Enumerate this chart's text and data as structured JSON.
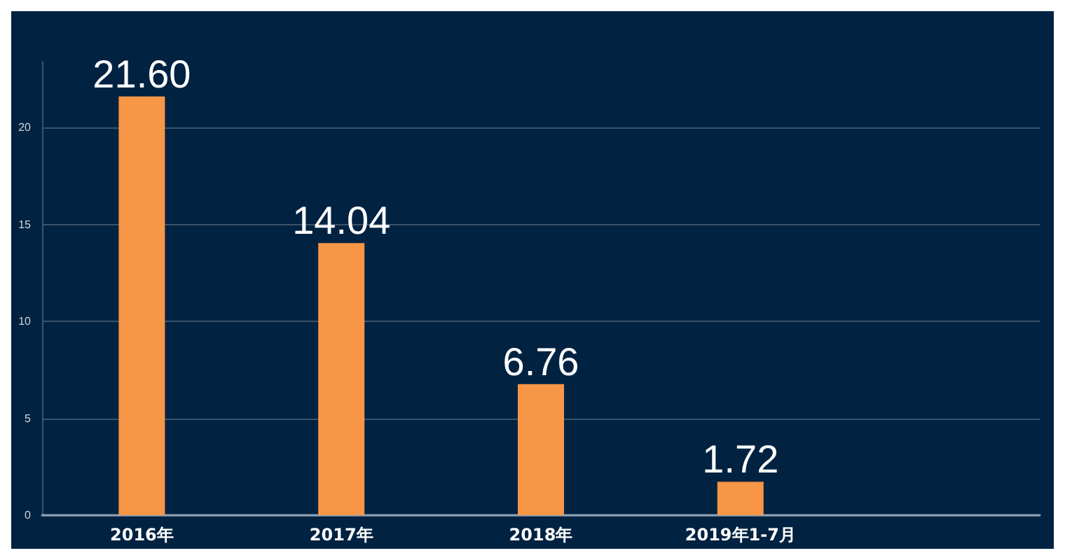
{
  "chart_data": {
    "type": "bar",
    "categories": [
      "2016年",
      "2017年",
      "2018年",
      "2019年1-7月",
      null
    ],
    "values": [
      21.6,
      14.04,
      6.76,
      1.72,
      null
    ],
    "value_labels": [
      "21.60",
      "14.04",
      "6.76",
      "1.72",
      null
    ],
    "color": "#f79646",
    "ylim": [
      0,
      23.4
    ],
    "yticks": [
      0,
      5,
      10,
      15,
      20
    ],
    "grid": "y"
  }
}
